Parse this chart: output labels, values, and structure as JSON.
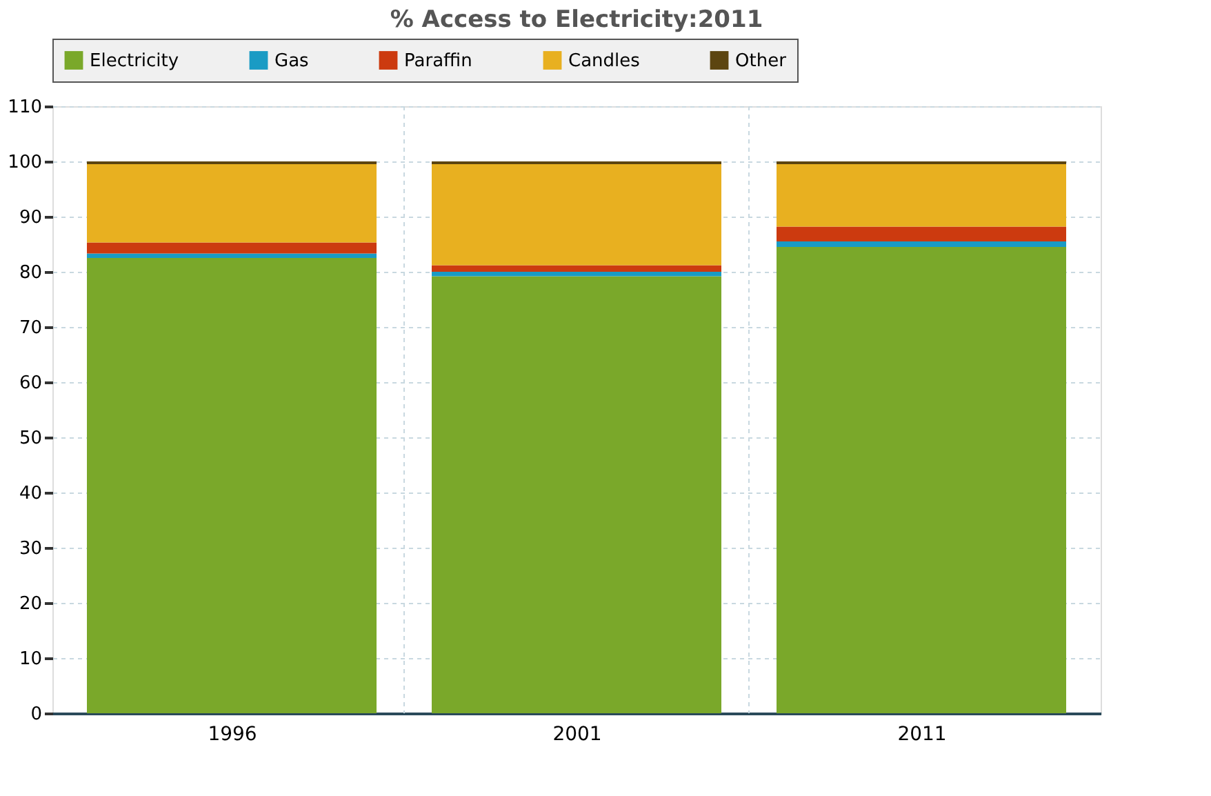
{
  "chart_data": {
    "type": "bar",
    "title": "% Access to Electricity:2011",
    "stacked": true,
    "categories": [
      "1996",
      "2001",
      "2011"
    ],
    "series": [
      {
        "name": "Electricity",
        "color": "#7aa82a",
        "values": [
          82.5,
          79.2,
          84.5
        ]
      },
      {
        "name": "Gas",
        "color": "#1a9bc4",
        "values": [
          0.8,
          0.8,
          1.0
        ]
      },
      {
        "name": "Paraffin",
        "color": "#cc3a0f",
        "values": [
          2.0,
          1.2,
          2.7
        ]
      },
      {
        "name": "Candles",
        "color": "#e8b020",
        "values": [
          14.2,
          18.3,
          11.3
        ]
      },
      {
        "name": "Other",
        "color": "#5c4510",
        "values": [
          0.5,
          0.5,
          0.5
        ]
      }
    ],
    "ylim": [
      0,
      110
    ],
    "yticks": [
      0,
      10,
      20,
      30,
      40,
      50,
      60,
      70,
      80,
      90,
      100,
      110
    ],
    "grid": true,
    "legend": "top"
  }
}
